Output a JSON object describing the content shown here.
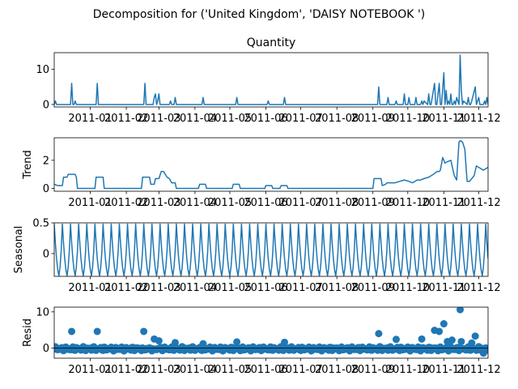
{
  "figure": {
    "suptitle": "Decomposition for ('United Kingdom', 'DAISY NOTEBOOK ')",
    "line_color": "#1f77b4"
  },
  "chart_data": [
    {
      "type": "line",
      "title": "Quantity",
      "ylabel": "",
      "ylim": [
        -0.7,
        14.7
      ],
      "yticks": [
        0,
        10
      ],
      "x_tick_labels": [
        "2011-01",
        "2011-02",
        "2011-03",
        "2011-04",
        "2011-05",
        "2011-06",
        "2011-07",
        "2011-08",
        "2011-09",
        "2011-10",
        "2011-11",
        "2011-12"
      ],
      "xlim": [
        "2010-12-01",
        "2011-12-09"
      ],
      "series": [
        {
          "x": [
            "2010-12-01",
            "2010-12-02",
            "2010-12-03",
            "2010-12-04",
            "2010-12-15",
            "2010-12-16",
            "2010-12-17",
            "2010-12-18",
            "2010-12-19",
            "2010-12-20",
            "2011-01-06",
            "2011-01-07",
            "2011-01-08",
            "2011-01-09",
            "2011-02-16",
            "2011-02-17",
            "2011-02-18",
            "2011-02-24",
            "2011-02-25",
            "2011-02-26",
            "2011-02-27",
            "2011-02-28",
            "2011-03-01",
            "2011-03-02",
            "2011-03-10",
            "2011-03-11",
            "2011-03-12",
            "2011-03-14",
            "2011-03-15",
            "2011-03-16",
            "2011-04-07",
            "2011-04-08",
            "2011-04-09",
            "2011-05-06",
            "2011-05-07",
            "2011-05-08",
            "2011-06-02",
            "2011-06-03",
            "2011-06-04",
            "2011-06-16",
            "2011-06-17",
            "2011-06-18",
            "2011-09-05",
            "2011-09-06",
            "2011-09-07",
            "2011-09-13",
            "2011-09-14",
            "2011-09-15",
            "2011-09-20",
            "2011-09-21",
            "2011-09-22",
            "2011-09-27",
            "2011-09-28",
            "2011-09-29",
            "2011-10-01",
            "2011-10-02",
            "2011-10-03",
            "2011-10-07",
            "2011-10-08",
            "2011-10-09",
            "2011-10-12",
            "2011-10-13",
            "2011-10-14",
            "2011-10-15",
            "2011-10-18",
            "2011-10-19",
            "2011-10-20",
            "2011-10-21",
            "2011-10-24",
            "2011-10-25",
            "2011-10-26",
            "2011-10-28",
            "2011-10-29",
            "2011-10-30",
            "2011-11-01",
            "2011-11-02",
            "2011-11-03",
            "2011-11-04",
            "2011-11-05",
            "2011-11-06",
            "2011-11-07",
            "2011-11-08",
            "2011-11-09",
            "2011-11-10",
            "2011-11-11",
            "2011-11-12",
            "2011-11-14",
            "2011-11-15",
            "2011-11-16",
            "2011-11-17",
            "2011-11-18",
            "2011-11-21",
            "2011-11-22",
            "2011-11-23",
            "2011-11-24",
            "2011-11-25",
            "2011-11-28",
            "2011-11-29",
            "2011-11-30",
            "2011-12-01",
            "2011-12-02",
            "2011-12-03",
            "2011-12-05",
            "2011-12-06",
            "2011-12-07",
            "2011-12-08",
            "2011-12-09"
          ],
          "y": [
            0,
            1,
            0,
            0,
            0,
            6,
            0,
            0,
            1,
            0,
            0,
            6,
            0,
            0,
            0,
            6,
            0,
            0,
            2,
            3,
            0,
            1,
            3,
            0,
            0,
            1,
            0,
            0,
            2,
            0,
            0,
            2,
            0,
            0,
            2,
            0,
            0,
            1,
            0,
            0,
            2,
            0,
            0,
            5,
            0,
            0,
            2,
            0,
            0,
            1,
            0,
            0,
            3,
            0,
            0,
            2,
            0,
            0,
            2,
            0,
            0,
            1,
            0,
            1,
            0,
            3,
            0,
            0,
            6,
            0,
            0,
            6,
            0,
            0,
            9,
            0,
            4,
            0,
            1,
            0,
            3,
            0,
            0,
            1,
            0,
            2,
            0,
            14,
            4,
            0,
            1,
            0,
            2,
            0,
            0,
            1,
            5,
            0,
            1,
            2,
            0,
            0,
            0,
            1,
            0,
            2,
            0
          ]
        }
      ]
    },
    {
      "type": "line",
      "title": "",
      "ylabel": "Trend",
      "ylim": [
        -0.2,
        3.6
      ],
      "yticks": [
        0,
        2
      ],
      "x_tick_labels": [
        "2011-01",
        "2011-02",
        "2011-03",
        "2011-04",
        "2011-05",
        "2011-06",
        "2011-07",
        "2011-08",
        "2011-09",
        "2011-10",
        "2011-11",
        "2011-12"
      ],
      "xlim": [
        "2010-12-01",
        "2011-12-09"
      ],
      "series": [
        {
          "x": [
            "2010-12-01",
            "2010-12-04",
            "2010-12-08",
            "2010-12-09",
            "2010-12-12",
            "2010-12-13",
            "2010-12-19",
            "2010-12-20",
            "2010-12-21",
            "2011-01-05",
            "2011-01-06",
            "2011-01-12",
            "2011-01-13",
            "2011-02-14",
            "2011-02-15",
            "2011-02-21",
            "2011-02-22",
            "2011-02-25",
            "2011-02-26",
            "2011-03-01",
            "2011-03-03",
            "2011-03-05",
            "2011-03-08",
            "2011-03-10",
            "2011-03-12",
            "2011-03-15",
            "2011-03-16",
            "2011-04-04",
            "2011-04-05",
            "2011-04-10",
            "2011-04-11",
            "2011-05-03",
            "2011-05-04",
            "2011-05-09",
            "2011-05-10",
            "2011-05-31",
            "2011-06-01",
            "2011-06-06",
            "2011-06-07",
            "2011-06-13",
            "2011-06-14",
            "2011-06-19",
            "2011-06-20",
            "2011-09-01",
            "2011-09-02",
            "2011-09-08",
            "2011-09-09",
            "2011-09-12",
            "2011-09-13",
            "2011-09-20",
            "2011-09-24",
            "2011-09-28",
            "2011-10-02",
            "2011-10-05",
            "2011-10-09",
            "2011-10-12",
            "2011-10-15",
            "2011-10-19",
            "2011-10-23",
            "2011-10-26",
            "2011-10-28",
            "2011-10-29",
            "2011-10-31",
            "2011-11-02",
            "2011-11-04",
            "2011-11-07",
            "2011-11-10",
            "2011-11-12",
            "2011-11-14",
            "2011-11-15",
            "2011-11-17",
            "2011-11-19",
            "2011-11-21",
            "2011-11-23",
            "2011-11-25",
            "2011-11-27",
            "2011-11-29",
            "2011-12-01",
            "2011-12-03",
            "2011-12-05",
            "2011-12-07",
            "2011-12-09"
          ],
          "y": [
            0.3,
            0.2,
            0.2,
            0.8,
            0.8,
            1.0,
            1.0,
            0.8,
            0,
            0,
            0.8,
            0.8,
            0,
            0,
            0.8,
            0.8,
            0.3,
            0.3,
            0.7,
            0.7,
            1.2,
            1.2,
            0.8,
            0.7,
            0.4,
            0.4,
            0,
            0,
            0.3,
            0.3,
            0,
            0,
            0.3,
            0.3,
            0,
            0,
            0.2,
            0.2,
            0,
            0,
            0.2,
            0.2,
            0,
            0,
            0.7,
            0.7,
            0.2,
            0.3,
            0.4,
            0.4,
            0.5,
            0.6,
            0.5,
            0.4,
            0.6,
            0.6,
            0.7,
            0.8,
            1.0,
            1.2,
            1.2,
            1.3,
            2.2,
            1.8,
            1.9,
            2.0,
            0.9,
            0.6,
            3.3,
            3.4,
            3.3,
            2.8,
            0.5,
            0.5,
            0.7,
            0.9,
            1.6,
            1.5,
            1.4,
            1.3,
            1.4,
            1.5
          ]
        }
      ]
    },
    {
      "type": "line",
      "title": "",
      "ylabel": "Seasonal",
      "ylim": [
        -0.37,
        0.5
      ],
      "yticks": [
        0.5,
        0.0
      ],
      "x_tick_labels": [
        "2011-01",
        "2011-02",
        "2011-03",
        "2011-04",
        "2011-05",
        "2011-06",
        "2011-07",
        "2011-08",
        "2011-09",
        "2011-10",
        "2011-11",
        "2011-12"
      ],
      "xlim": [
        "2010-12-01",
        "2011-12-09"
      ],
      "pattern": {
        "period_days": 7,
        "start": "2010-12-01",
        "end": "2011-12-09",
        "values": [
          0.48,
          0.17,
          -0.08,
          -0.26,
          -0.36,
          -0.22,
          0.05
        ]
      }
    },
    {
      "type": "scatter",
      "title": "",
      "ylabel": "Resid",
      "ylim": [
        -2.8,
        11.3
      ],
      "yticks": [
        0,
        10
      ],
      "x_tick_labels": [
        "2011-01",
        "2011-02",
        "2011-03",
        "2011-04",
        "2011-05",
        "2011-06",
        "2011-07",
        "2011-08",
        "2011-09",
        "2011-10",
        "2011-11",
        "2011-12"
      ],
      "xlim": [
        "2010-12-01",
        "2011-12-09"
      ],
      "points": {
        "x": [
          "2010-12-16",
          "2011-01-07",
          "2011-02-16",
          "2011-02-25",
          "2011-03-01",
          "2011-03-15",
          "2011-04-08",
          "2011-05-07",
          "2011-06-17",
          "2011-09-06",
          "2011-09-21",
          "2011-10-13",
          "2011-10-24",
          "2011-10-28",
          "2011-11-01",
          "2011-11-04",
          "2011-11-08",
          "2011-11-15",
          "2011-11-16",
          "2011-11-25",
          "2011-11-28",
          "2011-12-05"
        ],
        "y": [
          4.6,
          4.6,
          4.6,
          2.5,
          2.0,
          1.5,
          1.2,
          1.7,
          1.6,
          4.0,
          2.4,
          2.5,
          4.9,
          4.6,
          6.7,
          1.8,
          2.2,
          10.6,
          1.8,
          1.4,
          3.3,
          -1.4
        ]
      },
      "baseline_noise": {
        "period_days": 1,
        "start": "2010-12-01",
        "end": "2011-12-09",
        "amplitude": 0.6
      }
    }
  ]
}
